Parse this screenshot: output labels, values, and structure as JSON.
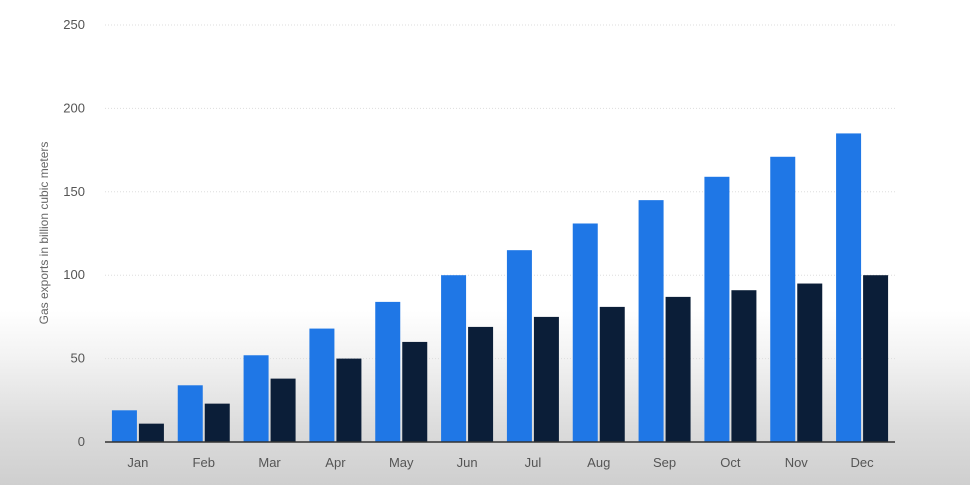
{
  "chart_data": {
    "type": "bar",
    "title": "",
    "xlabel": "",
    "ylabel": "Gas exports in billion cubic meters",
    "ylim": [
      0,
      250
    ],
    "yticks": [
      0,
      50,
      100,
      150,
      200,
      250
    ],
    "grid": true,
    "legend": "none",
    "categories": [
      "Jan",
      "Feb",
      "Mar",
      "Apr",
      "May",
      "Jun",
      "Jul",
      "Aug",
      "Sep",
      "Oct",
      "Nov",
      "Dec"
    ],
    "series": [
      {
        "color": "#1f77e6",
        "values": [
          19,
          34,
          52,
          68,
          84,
          100,
          115,
          131,
          145,
          159,
          171,
          185
        ]
      },
      {
        "color": "#0b1e38",
        "values": [
          11,
          23,
          38,
          50,
          60,
          69,
          75,
          81,
          87,
          91,
          95,
          100
        ]
      }
    ]
  }
}
